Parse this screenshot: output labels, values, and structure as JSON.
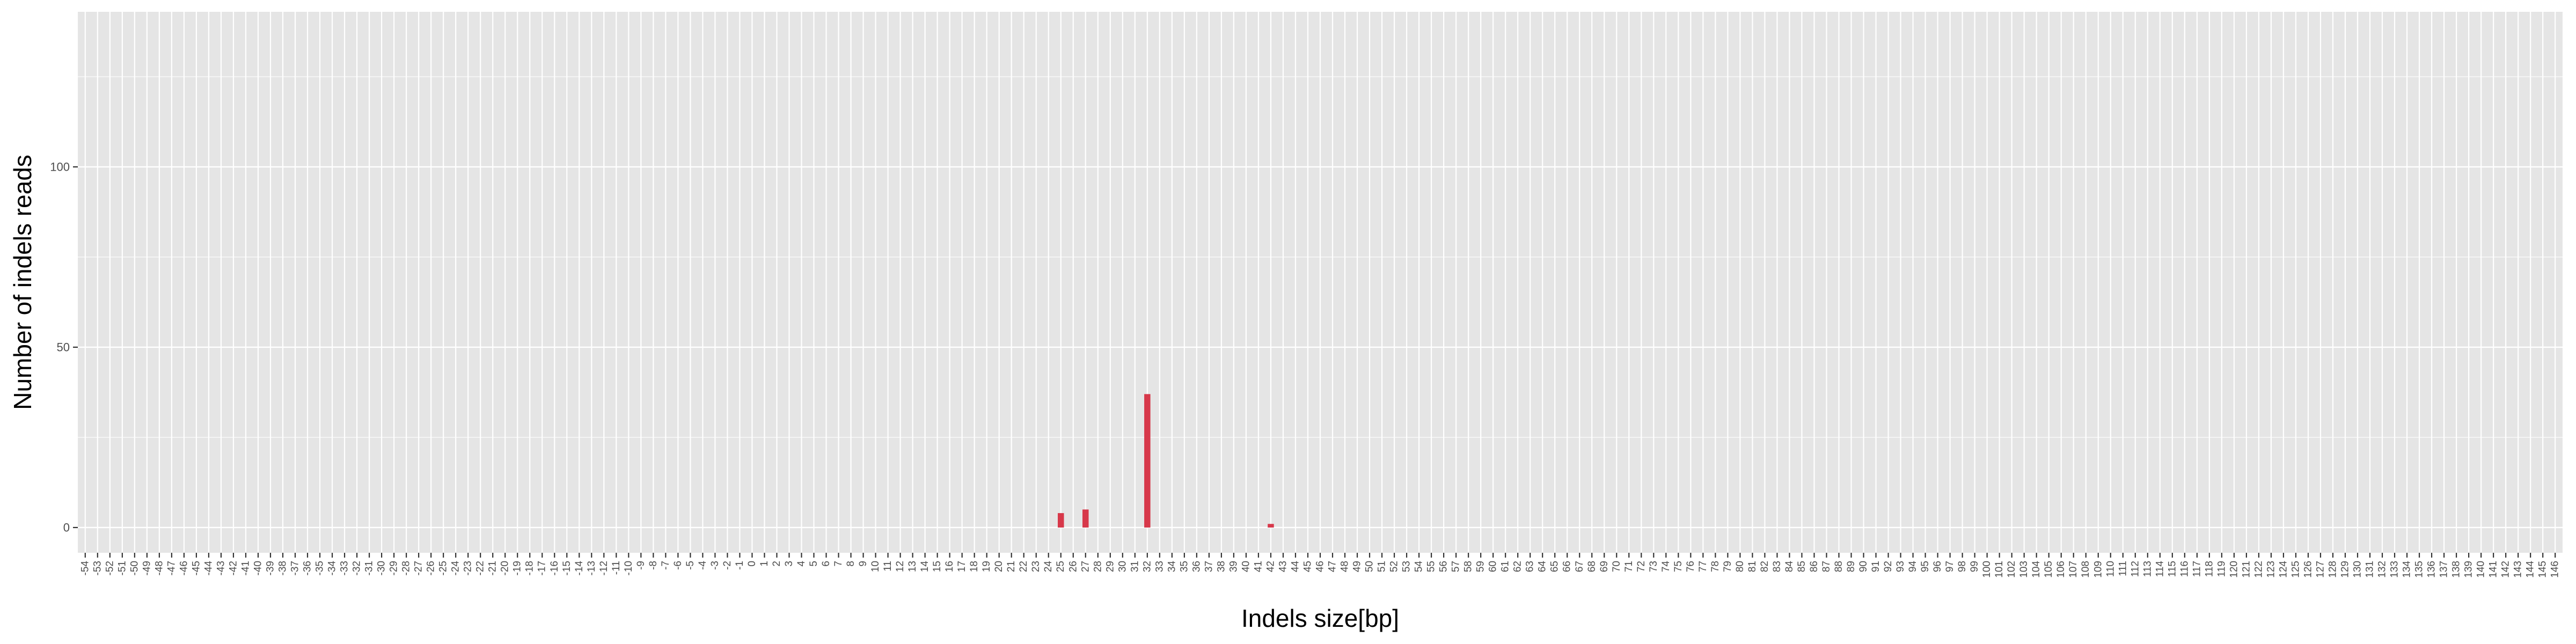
{
  "chart_data": {
    "type": "bar",
    "title": "",
    "xlabel": "Indels size[bp]",
    "ylabel": "Number of indels reads",
    "x_range": [
      -54,
      146
    ],
    "ylim": [
      -7,
      143
    ],
    "y_ticks": [
      0,
      50,
      100
    ],
    "grid": true,
    "legend": "none",
    "series": [
      {
        "values": [
          {
            "x": 25,
            "y": 4
          },
          {
            "x": 27,
            "y": 5
          },
          {
            "x": 32,
            "y": 37
          },
          {
            "x": 42,
            "y": 1
          }
        ]
      }
    ],
    "colors": {
      "bar": "#D7384A",
      "panel_background": "#E5E5E5",
      "grid": "#FFFFFF",
      "tick_text": "#4D4D4D",
      "axis_title": "#000000"
    }
  }
}
